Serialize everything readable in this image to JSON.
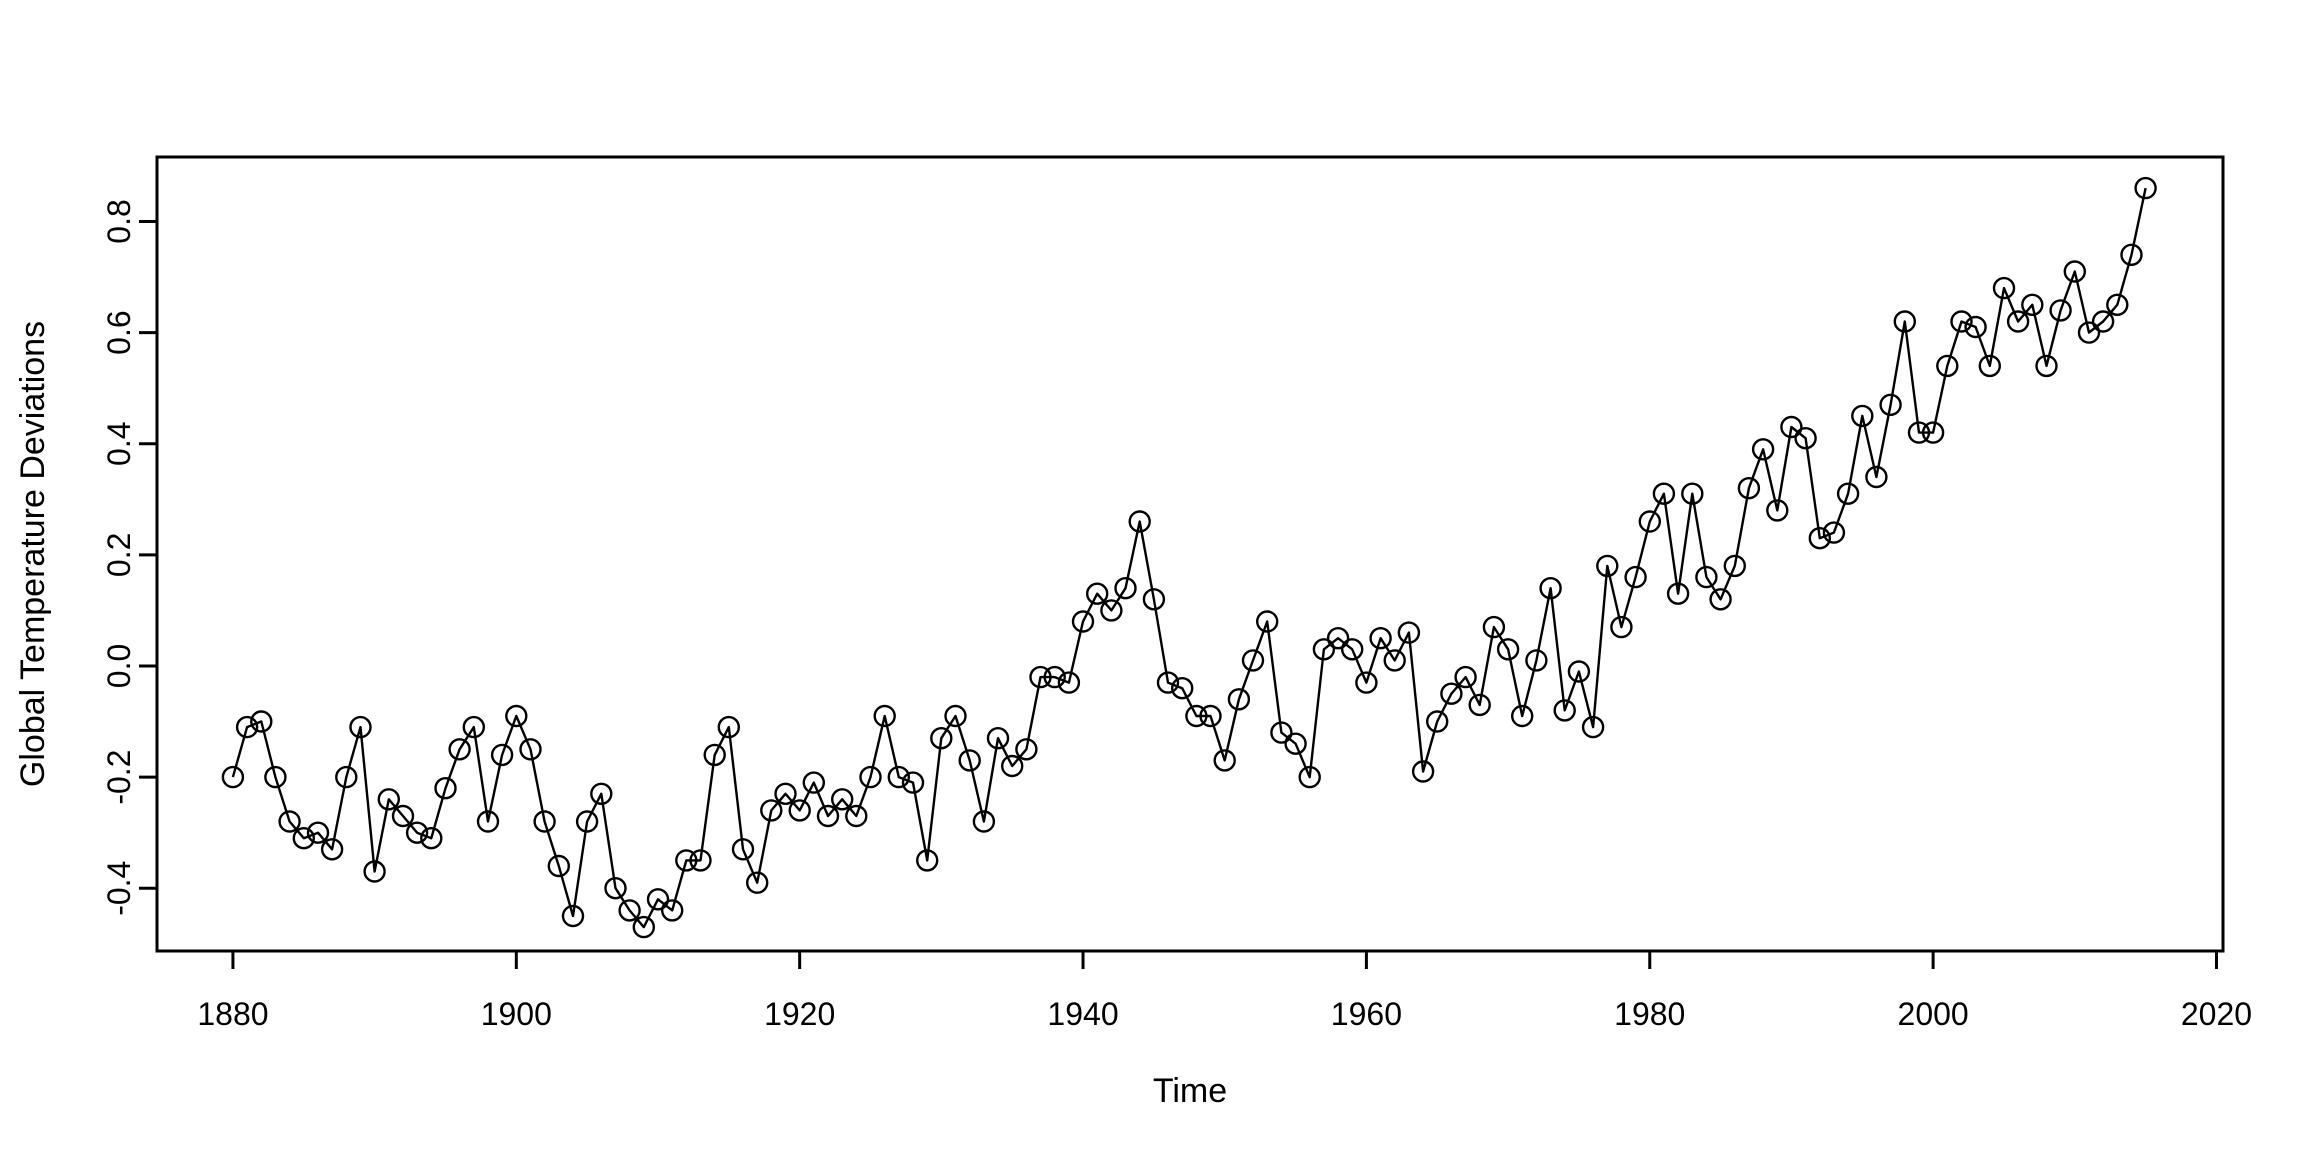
{
  "page": {
    "background": "#ffffff",
    "foreground": "#000000"
  },
  "chart_data": {
    "type": "line",
    "title": "",
    "xlabel": "Time",
    "ylabel": "Global Temperature Deviations",
    "series_name": "Global Temperature Deviations",
    "marker": "open-circle",
    "marker_radius_px": 10,
    "line_color": "#000000",
    "background": "#ffffff",
    "grid": false,
    "legend": "none",
    "xlim": [
      1874.64,
      2020.46
    ],
    "ylim": [
      -0.513,
      0.916
    ],
    "x_ticks": [
      1880,
      1900,
      1920,
      1940,
      1960,
      1980,
      2000,
      2020
    ],
    "x_tick_labels": [
      "1880",
      "1900",
      "1920",
      "1940",
      "1960",
      "1980",
      "2000",
      "2020"
    ],
    "y_ticks": [
      -0.4,
      -0.2,
      0.0,
      0.2,
      0.4,
      0.6,
      0.8
    ],
    "y_tick_labels": [
      "-0.4",
      "-0.2",
      "0.0",
      "0.2",
      "0.4",
      "0.6",
      "0.8"
    ],
    "x": [
      1880,
      1881,
      1882,
      1883,
      1884,
      1885,
      1886,
      1887,
      1888,
      1889,
      1890,
      1891,
      1892,
      1893,
      1894,
      1895,
      1896,
      1897,
      1898,
      1899,
      1900,
      1901,
      1902,
      1903,
      1904,
      1905,
      1906,
      1907,
      1908,
      1909,
      1910,
      1911,
      1912,
      1913,
      1914,
      1915,
      1916,
      1917,
      1918,
      1919,
      1920,
      1921,
      1922,
      1923,
      1924,
      1925,
      1926,
      1927,
      1928,
      1929,
      1930,
      1931,
      1932,
      1933,
      1934,
      1935,
      1936,
      1937,
      1938,
      1939,
      1940,
      1941,
      1942,
      1943,
      1944,
      1945,
      1946,
      1947,
      1948,
      1949,
      1950,
      1951,
      1952,
      1953,
      1954,
      1955,
      1956,
      1957,
      1958,
      1959,
      1960,
      1961,
      1962,
      1963,
      1964,
      1965,
      1966,
      1967,
      1968,
      1969,
      1970,
      1971,
      1972,
      1973,
      1974,
      1975,
      1976,
      1977,
      1978,
      1979,
      1980,
      1981,
      1982,
      1983,
      1984,
      1985,
      1986,
      1987,
      1988,
      1989,
      1990,
      1991,
      1992,
      1993,
      1994,
      1995,
      1996,
      1997,
      1998,
      1999,
      2000,
      2001,
      2002,
      2003,
      2004,
      2005,
      2006,
      2007,
      2008,
      2009,
      2010,
      2011,
      2012,
      2013,
      2014,
      2015
    ],
    "values": [
      -0.2,
      -0.11,
      -0.1,
      -0.2,
      -0.28,
      -0.31,
      -0.3,
      -0.33,
      -0.2,
      -0.11,
      -0.37,
      -0.24,
      -0.27,
      -0.3,
      -0.31,
      -0.22,
      -0.15,
      -0.11,
      -0.28,
      -0.16,
      -0.09,
      -0.15,
      -0.28,
      -0.36,
      -0.45,
      -0.28,
      -0.23,
      -0.4,
      -0.44,
      -0.47,
      -0.42,
      -0.44,
      -0.35,
      -0.35,
      -0.16,
      -0.11,
      -0.33,
      -0.39,
      -0.26,
      -0.23,
      -0.26,
      -0.21,
      -0.27,
      -0.24,
      -0.27,
      -0.2,
      -0.09,
      -0.2,
      -0.21,
      -0.35,
      -0.13,
      -0.09,
      -0.17,
      -0.28,
      -0.13,
      -0.18,
      -0.15,
      -0.02,
      -0.02,
      -0.03,
      0.08,
      0.13,
      0.1,
      0.14,
      0.26,
      0.12,
      -0.03,
      -0.04,
      -0.09,
      -0.09,
      -0.17,
      -0.06,
      0.01,
      0.08,
      -0.12,
      -0.14,
      -0.2,
      0.03,
      0.05,
      0.03,
      -0.03,
      0.05,
      0.01,
      0.06,
      -0.19,
      -0.1,
      -0.05,
      -0.02,
      -0.07,
      0.07,
      0.03,
      -0.09,
      0.01,
      0.14,
      -0.08,
      -0.01,
      -0.11,
      0.18,
      0.07,
      0.16,
      0.26,
      0.31,
      0.13,
      0.31,
      0.16,
      0.12,
      0.18,
      0.32,
      0.39,
      0.28,
      0.43,
      0.41,
      0.23,
      0.24,
      0.31,
      0.45,
      0.34,
      0.47,
      0.62,
      0.42,
      0.42,
      0.54,
      0.62,
      0.61,
      0.54,
      0.68,
      0.62,
      0.65,
      0.54,
      0.64,
      0.71,
      0.6,
      0.62,
      0.65,
      0.74,
      0.86
    ]
  }
}
